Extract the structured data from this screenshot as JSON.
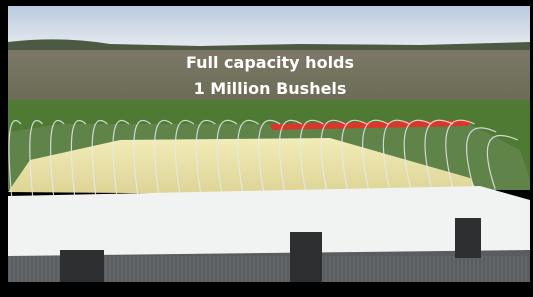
{
  "caption": {
    "line1": "Full capacity holds",
    "line2": "1 Million Bushels"
  }
}
